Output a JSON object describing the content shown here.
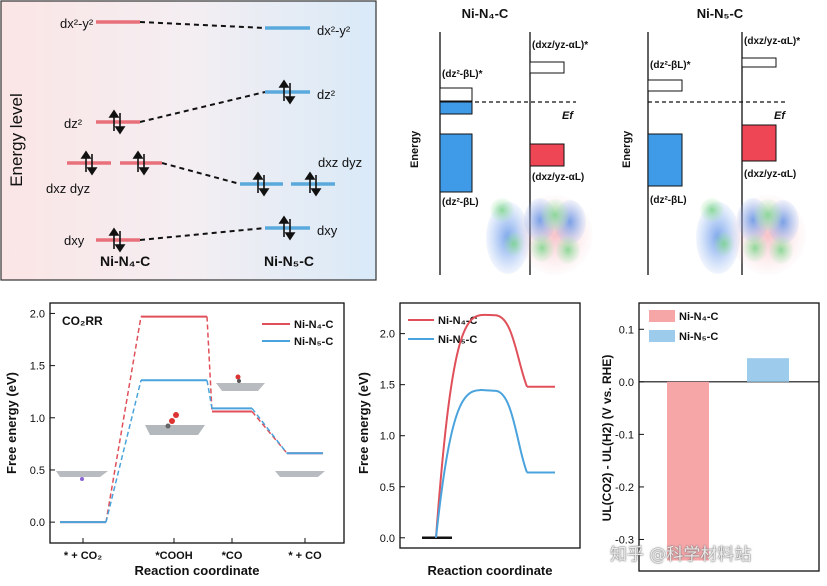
{
  "panel_a": {
    "y_label": "Energy level",
    "left_label": "Ni-N₄-C",
    "right_label": "Ni-N₅-C",
    "left_levels": [
      "dx²-y²",
      "dz²",
      "dxz dyz",
      "dxy"
    ],
    "right_levels": [
      "dx²-y²",
      "dz²",
      "dxz dyz",
      "dxy"
    ],
    "colors": {
      "left": "#e8707a",
      "right": "#5aa9dc",
      "bg_left": "#fbe6e6",
      "bg_right": "#dcecf8"
    }
  },
  "panel_b": {
    "titles": [
      "Ni-N₄-C",
      "Ni-N₅-C"
    ],
    "y_label": "Energy",
    "fermi_label": "Ef",
    "left_state_labels": [
      "(dz²-βL)*",
      "(dz²-βL)"
    ],
    "right_state_labels": [
      "(dxz/yz-αL)*",
      "(dxz/yz-αL)"
    ],
    "colors": {
      "blue": "#3f9be8",
      "red": "#ef4656"
    }
  },
  "chart_data": [
    {
      "type": "line",
      "title": "CO₂RR",
      "xlabel": "Reaction coordinate",
      "ylabel": "Free energy (eV)",
      "categories": [
        "* + CO₂",
        "*COOH",
        "*CO",
        "* + CO"
      ],
      "ylim": [
        -0.2,
        2.1
      ],
      "yticks": [
        "0.0",
        "0.5",
        "1.0",
        "1.5",
        "2.0"
      ],
      "series": [
        {
          "name": "Ni-N₄-C",
          "color": "#e0505a",
          "values": [
            0.0,
            1.97,
            1.06,
            0.66
          ]
        },
        {
          "name": "Ni-N₅-C",
          "color": "#4aa3dc",
          "values": [
            0.0,
            1.36,
            1.09,
            0.66
          ]
        }
      ]
    },
    {
      "type": "line",
      "xlabel": "Reaction coordinate",
      "ylabel": "Free energy (eV)",
      "ylim": [
        -0.1,
        2.3
      ],
      "yticks": [
        "0.0",
        "0.5",
        "1.0",
        "1.5",
        "2.0"
      ],
      "initial": 0.0,
      "series": [
        {
          "name": "Ni-N₄-C",
          "color": "#e0505a",
          "barrier": 2.18,
          "final": 1.48
        },
        {
          "name": "Ni-N₅-C",
          "color": "#4aa3dc",
          "barrier": 1.44,
          "final": 0.64
        }
      ]
    },
    {
      "type": "bar",
      "ylabel": "UL(CO2) - UL(H2) (V vs. RHE)",
      "ylim": [
        -0.36,
        0.15
      ],
      "yticks": [
        "0.1",
        "0.0",
        "-0.1",
        "-0.2",
        "-0.3"
      ],
      "series": [
        {
          "name": "Ni-N₄-C",
          "color": "#f7a6a8",
          "value": -0.34
        },
        {
          "name": "Ni-N₅-C",
          "color": "#9ccbec",
          "value": 0.045
        }
      ]
    }
  ],
  "watermark": "知乎 @科学材料站"
}
